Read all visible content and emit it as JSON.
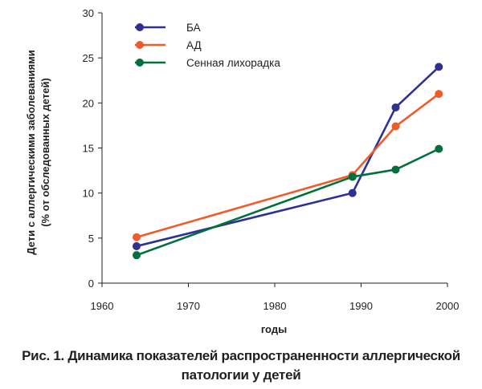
{
  "chart_data": {
    "type": "line",
    "x": [],
    "xlabel": "годы",
    "ylabel_lines": [
      "Дети с аллергическими заболеваниями",
      "(% от обследованных детей)"
    ],
    "xlim": [
      1960,
      2000
    ],
    "ylim": [
      0,
      30
    ],
    "xticks": [
      1960,
      1970,
      1980,
      1990,
      2000
    ],
    "yticks": [
      0,
      5,
      10,
      15,
      20,
      25,
      30
    ],
    "legend_position": "top-left",
    "series": [
      {
        "name": "БА",
        "color": "#2e3192",
        "points": [
          [
            1964,
            4.1
          ],
          [
            1989,
            10.0
          ],
          [
            1994,
            19.5
          ],
          [
            1999,
            24.0
          ]
        ]
      },
      {
        "name": "АД",
        "color": "#f15a29",
        "points": [
          [
            1964,
            5.1
          ],
          [
            1989,
            12.0
          ],
          [
            1994,
            17.4
          ],
          [
            1999,
            21.0
          ]
        ]
      },
      {
        "name": "Сенная лихорадка",
        "color": "#00703c",
        "points": [
          [
            1964,
            3.1
          ],
          [
            1989,
            11.8
          ],
          [
            1994,
            12.6
          ],
          [
            1999,
            14.9
          ]
        ]
      }
    ]
  },
  "caption": {
    "line1": "Рис. 1. Динамика показателей распространенности аллергической",
    "line2": "патологии у детей"
  }
}
